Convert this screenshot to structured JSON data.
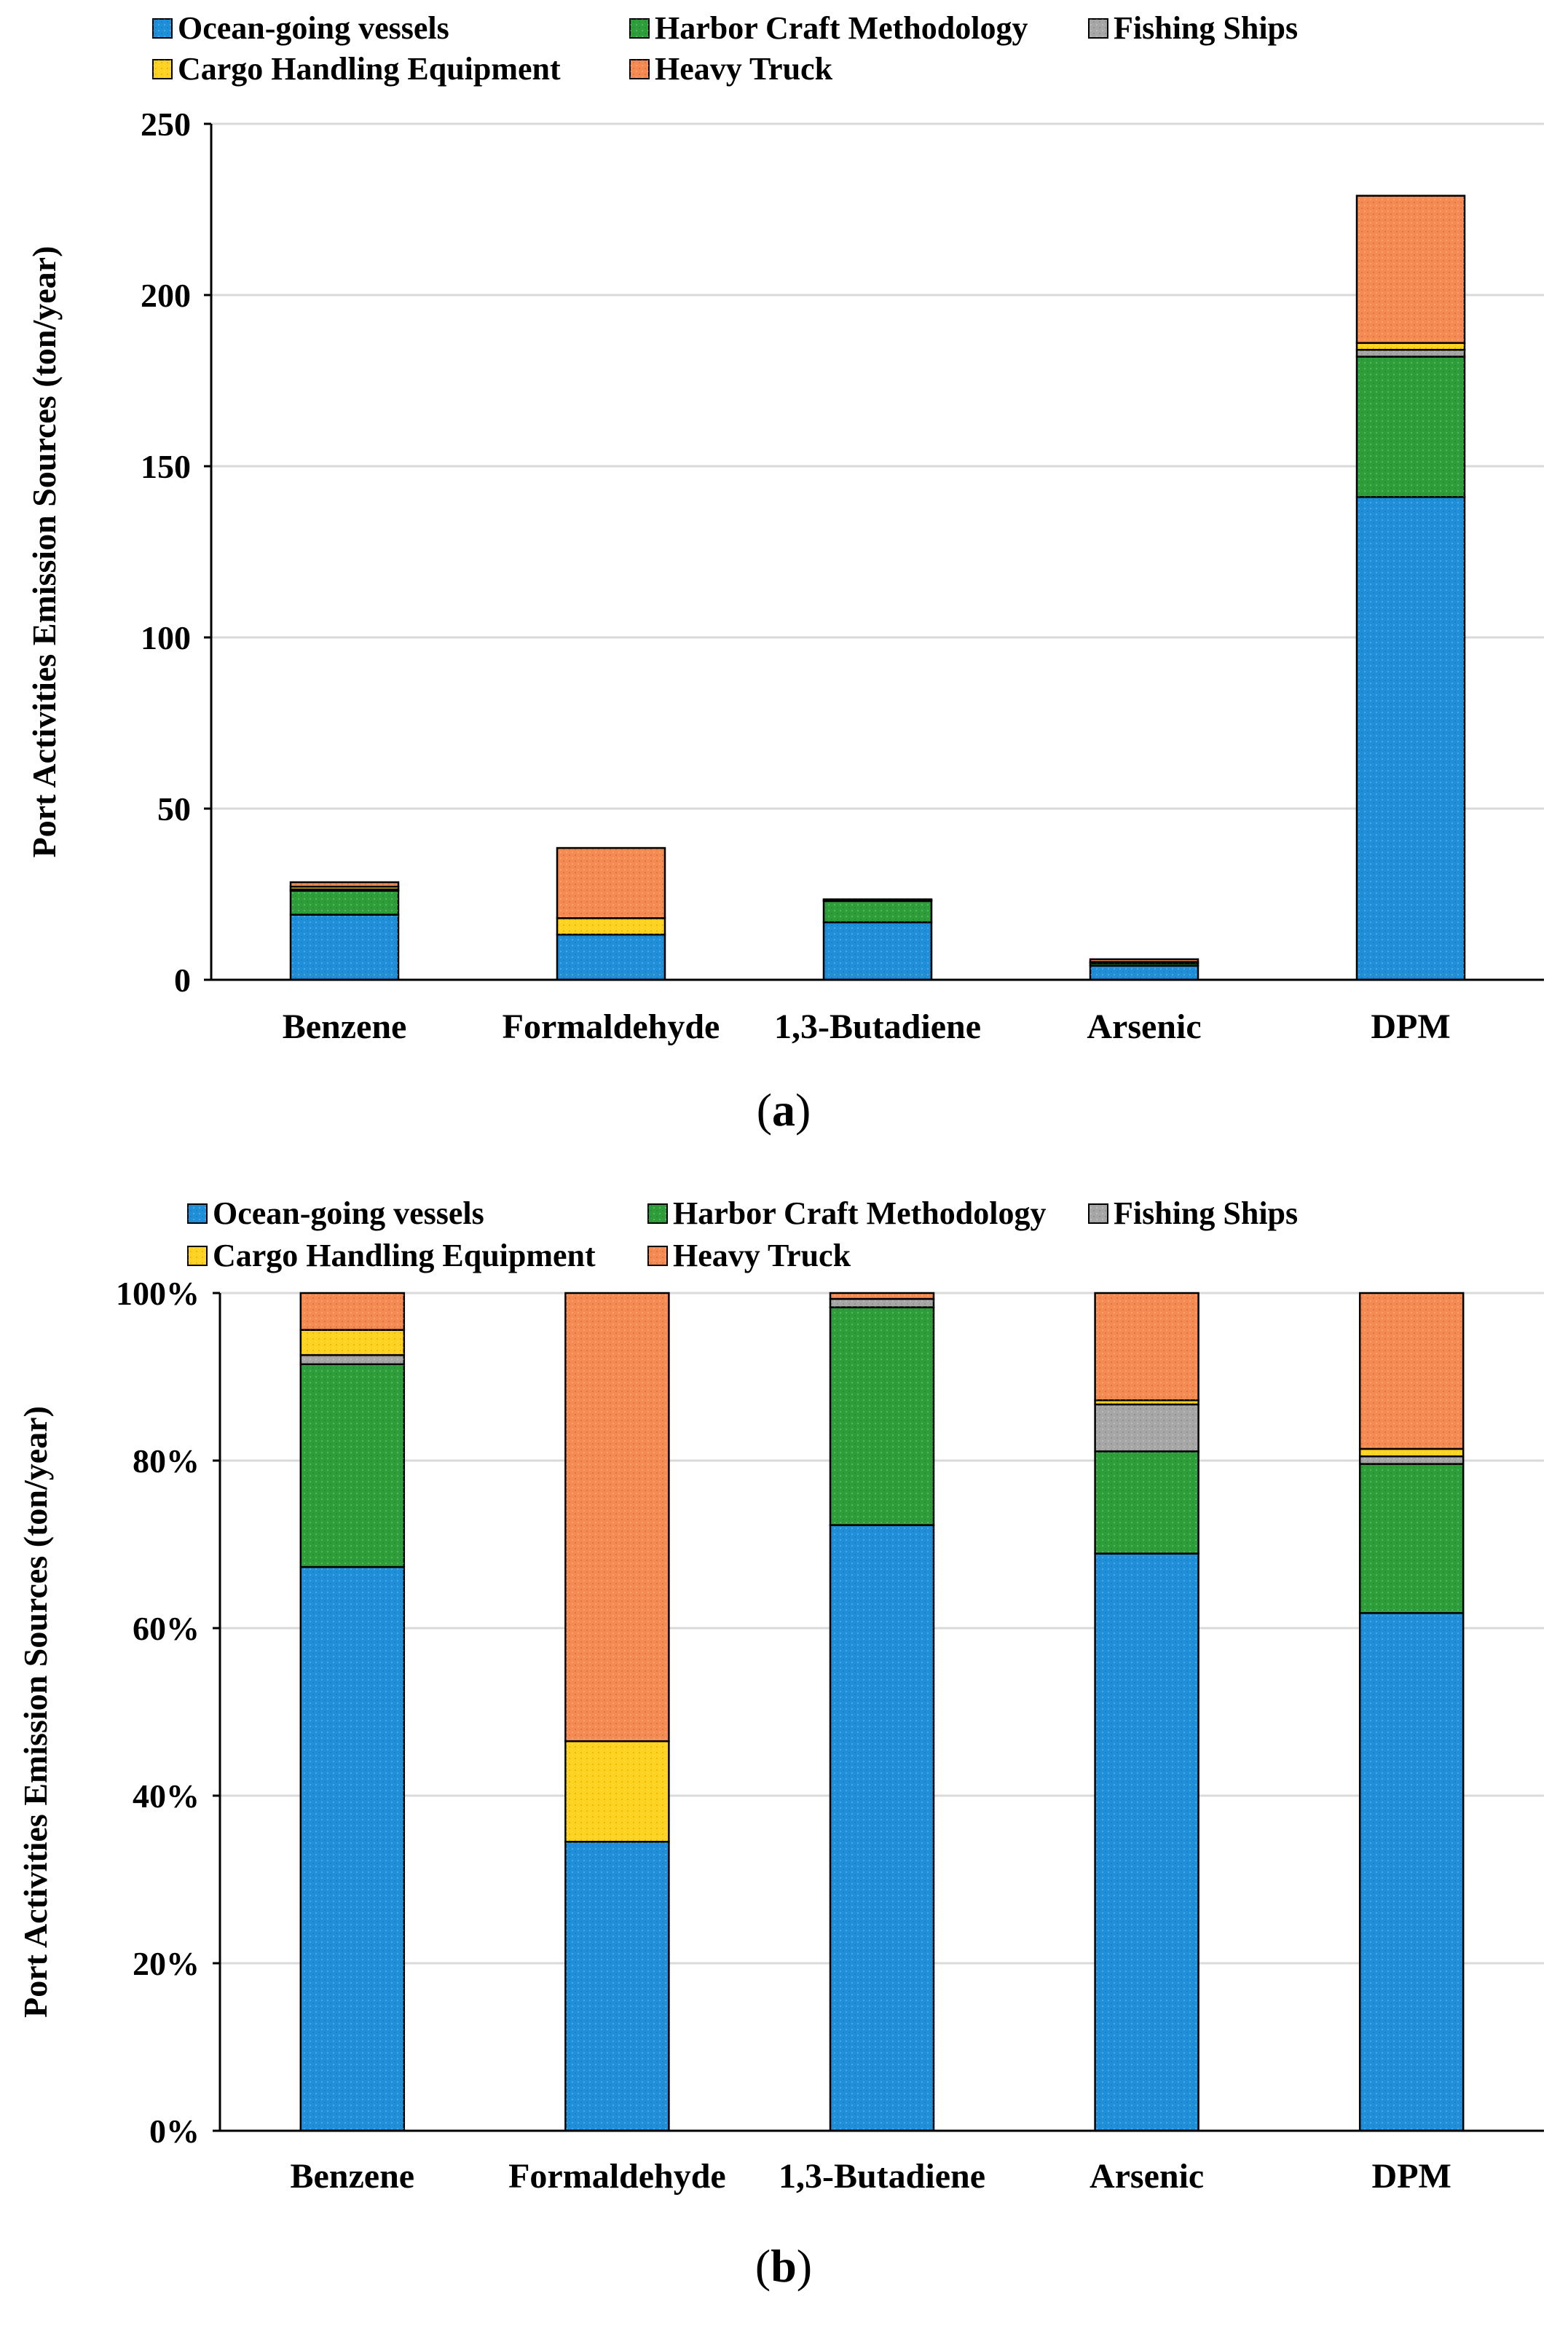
{
  "legend_rows": [
    [
      "Ocean-going vessels",
      "Harbor Craft Methodology",
      "Fishing Ships"
    ],
    [
      "Cargo Handling Equipment",
      "Heavy Truck"
    ]
  ],
  "colors": {
    "Ocean-going vessels": "#1F8FD9",
    "Harbor Craft Methodology": "#2E9E3A",
    "Fishing Ships": "#A6A6A6",
    "Cargo Handling Equipment": "#FFD21F",
    "Heavy Truck": "#F58A52"
  },
  "chart_data": [
    {
      "type": "bar",
      "stacked": true,
      "panel_label": "a",
      "categories": [
        "Benzene",
        "Formaldehyde",
        "1,3-Butadiene",
        "Arsenic",
        "DPM"
      ],
      "series": [
        {
          "name": "Ocean-going vessels",
          "values": [
            19,
            13.2,
            16.8,
            4.1,
            141
          ]
        },
        {
          "name": "Harbor Craft Methodology",
          "values": [
            7,
            0,
            6.2,
            0.7,
            41
          ]
        },
        {
          "name": "Fishing Ships",
          "values": [
            0.4,
            0,
            0.3,
            0.4,
            2
          ]
        },
        {
          "name": "Cargo Handling Equipment",
          "values": [
            0.8,
            4.8,
            0,
            0,
            2
          ]
        },
        {
          "name": "Heavy Truck",
          "values": [
            1.3,
            20.5,
            0.2,
            0.8,
            43
          ]
        }
      ],
      "ylabel": "Port Activities Emission Sources (ton/year)",
      "xlabel": "",
      "ylim": [
        0,
        250
      ],
      "yticks": [
        0,
        50,
        100,
        150,
        200,
        250
      ],
      "ytick_labels": [
        "0",
        "50",
        "100",
        "150",
        "200",
        "250"
      ],
      "grid": true
    },
    {
      "type": "bar",
      "stacked": true,
      "percent": true,
      "panel_label": "b",
      "categories": [
        "Benzene",
        "Formaldehyde",
        "1,3-Butadiene",
        "Arsenic",
        "DPM"
      ],
      "series": [
        {
          "name": "Ocean-going vessels",
          "values": [
            67.3,
            34.5,
            72.3,
            68.9,
            61.8
          ]
        },
        {
          "name": "Harbor Craft Methodology",
          "values": [
            24.2,
            0,
            26,
            12.2,
            17.8
          ]
        },
        {
          "name": "Fishing Ships",
          "values": [
            1.1,
            0,
            1,
            5.6,
            0.9
          ]
        },
        {
          "name": "Cargo Handling Equipment",
          "values": [
            3,
            12,
            0,
            0.5,
            0.9
          ]
        },
        {
          "name": "Heavy Truck",
          "values": [
            4.4,
            53.5,
            0.7,
            12.8,
            18.6
          ]
        }
      ],
      "ylabel": "Port Activities Emission Sources (ton/year)",
      "xlabel": "",
      "ylim": [
        0,
        100
      ],
      "yticks": [
        0,
        20,
        40,
        60,
        80,
        100
      ],
      "ytick_labels": [
        "0%",
        "20%",
        "40%",
        "60%",
        "80%",
        "100%"
      ],
      "grid": true
    }
  ]
}
